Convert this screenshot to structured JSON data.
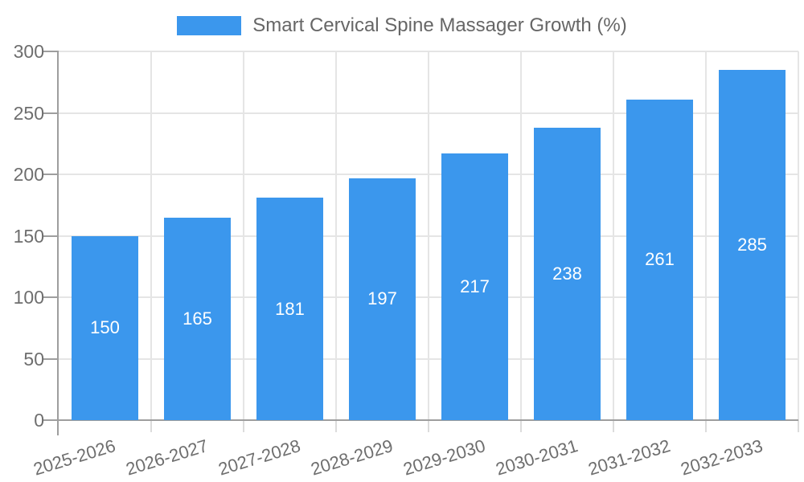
{
  "legend": {
    "label": "Smart Cervical Spine Massager Growth (%)"
  },
  "chart_data": {
    "type": "bar",
    "title": "Smart Cervical Spine Massager Growth (%)",
    "categories": [
      "2025-2026",
      "2026-2027",
      "2027-2028",
      "2028-2029",
      "2029-2030",
      "2030-2031",
      "2031-2032",
      "2032-2033"
    ],
    "values": [
      150,
      165,
      181,
      197,
      217,
      238,
      261,
      285
    ],
    "xlabel": "",
    "ylabel": "",
    "ylim": [
      0,
      300
    ],
    "ytick_step": 50,
    "ytick_labels": [
      "0",
      "50",
      "100",
      "150",
      "200",
      "250",
      "300"
    ],
    "grid": true,
    "legend_position": "top",
    "value_labels_inside_bars": true,
    "x_label_rotation_deg": -17
  },
  "colors": {
    "bar": "#3B97ED",
    "axis_line": "#9e9e9e",
    "grid_line": "#e5e5e5",
    "x_tick": "#dcdcdc",
    "y_tick": "#9e9e9e",
    "text": "#6e6e6e",
    "value_label": "#ffffff",
    "background": "#ffffff"
  }
}
